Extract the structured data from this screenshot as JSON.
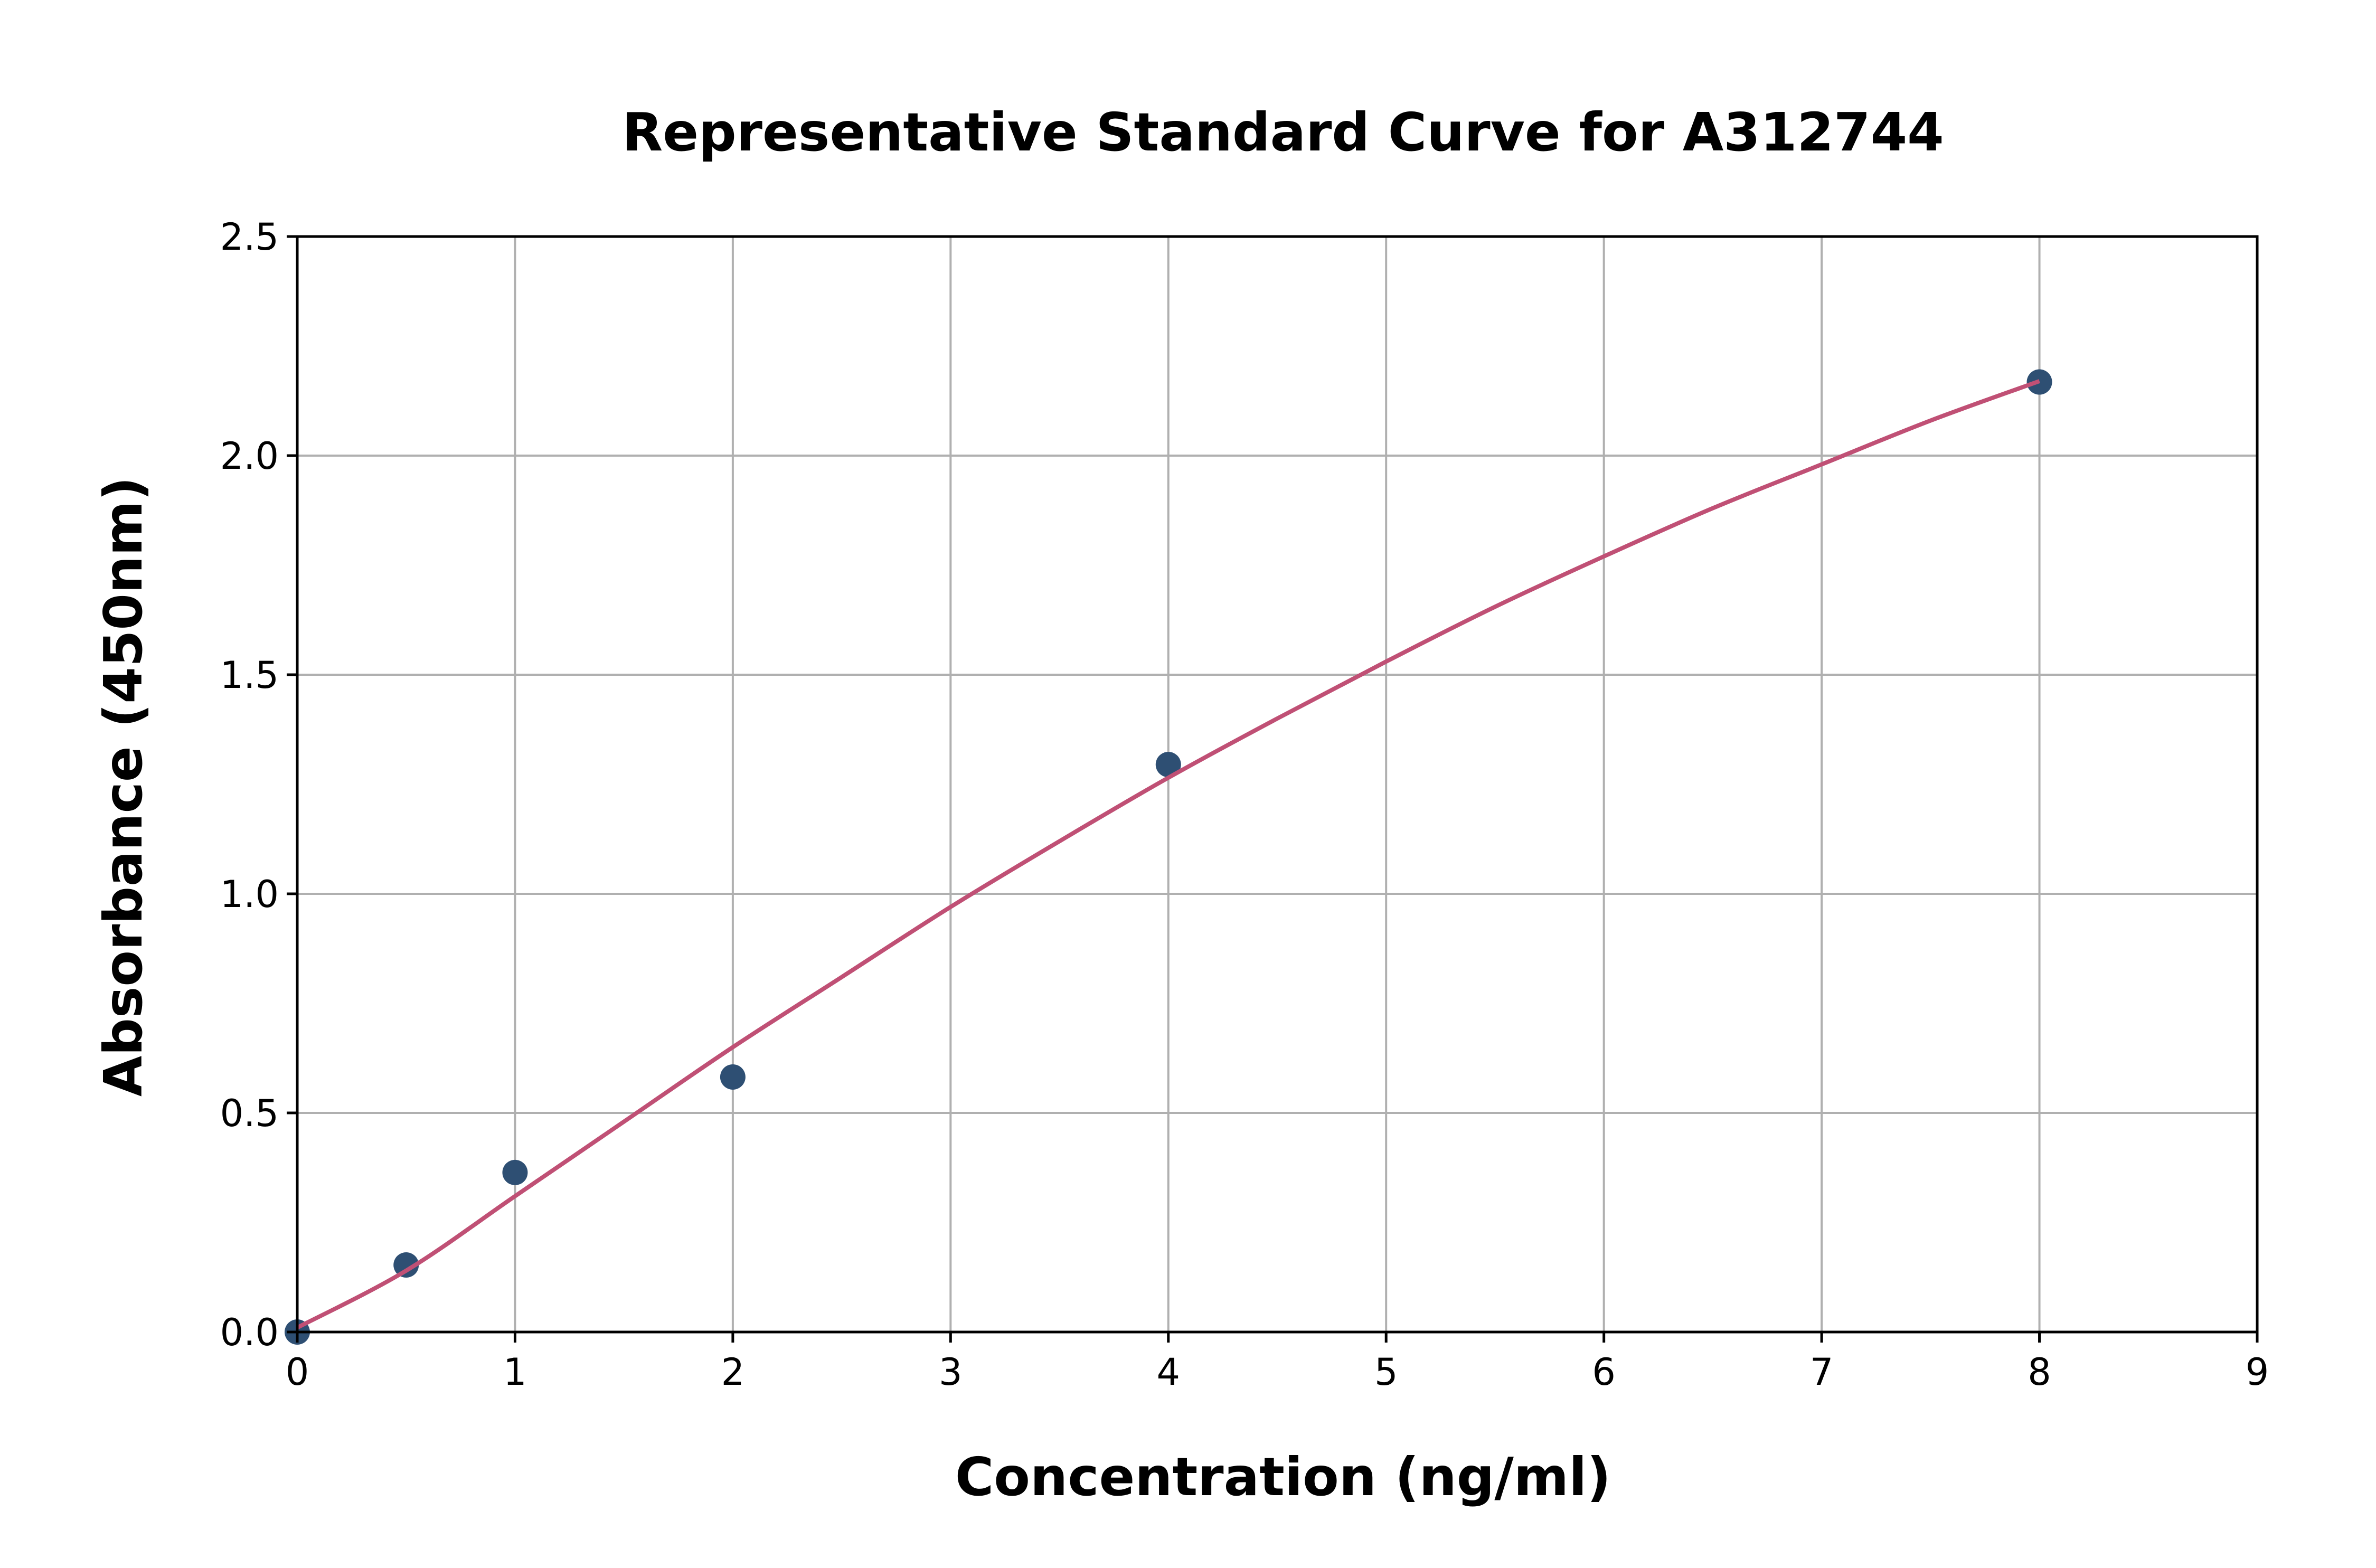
{
  "chart_data": {
    "type": "scatter",
    "title": "Representative Standard Curve for A312744",
    "xlabel": "Concentration (ng/ml)",
    "ylabel": "Absorbance (450nm)",
    "xlim": [
      0,
      9
    ],
    "ylim": [
      0,
      2.5
    ],
    "xticks": [
      "0",
      "1",
      "2",
      "3",
      "4",
      "5",
      "6",
      "7",
      "8",
      "9"
    ],
    "yticks": [
      "0.0",
      "0.5",
      "1.0",
      "1.5",
      "2.0",
      "2.5"
    ],
    "grid": true,
    "series": [
      {
        "kind": "points",
        "color": "#2e4f73",
        "x": [
          0,
          0.5,
          1,
          2,
          4,
          8
        ],
        "y": [
          0.0,
          0.153,
          0.364,
          0.582,
          1.295,
          2.168
        ]
      },
      {
        "kind": "fit-line",
        "color": "#c05075",
        "x": [
          0,
          0.5,
          1,
          1.5,
          2,
          2.5,
          3,
          3.5,
          4,
          4.5,
          5,
          5.5,
          6,
          6.5,
          7,
          7.5,
          8
        ],
        "y": [
          0.01,
          0.14,
          0.31,
          0.48,
          0.65,
          0.81,
          0.97,
          1.12,
          1.265,
          1.4,
          1.53,
          1.655,
          1.77,
          1.88,
          1.98,
          2.08,
          2.17
        ]
      }
    ]
  }
}
